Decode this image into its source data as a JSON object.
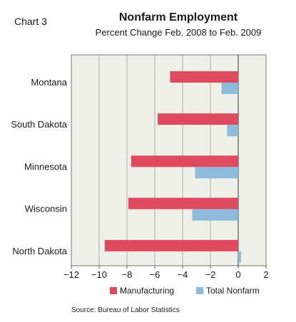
{
  "chart_label": "Chart 3",
  "source": "Source: Bureau of Labor Statistics",
  "colors": {
    "manufacturing": "#e04a5f",
    "total_nonfarm": "#8cbbdc",
    "plot_bg": "#eff0e8",
    "grid": "#9a9a9a"
  },
  "chart_data": {
    "type": "bar",
    "orientation": "horizontal",
    "title": "Nonfarm Employment",
    "subtitle": "Percent Change Feb. 2008 to Feb. 2009",
    "xlabel": "",
    "ylabel": "",
    "categories": [
      "Montana",
      "South Dakota",
      "Minnesota",
      "Wisconsin",
      "North Dakota"
    ],
    "series": [
      {
        "name": "Manufacturing",
        "values": [
          -4.9,
          -5.8,
          -7.7,
          -7.9,
          -9.6
        ]
      },
      {
        "name": "Total Nonfarm",
        "values": [
          -1.2,
          -0.8,
          -3.1,
          -3.3,
          0.2
        ]
      }
    ],
    "xlim": [
      -12,
      2
    ],
    "xticks": [
      -12,
      -10,
      -8,
      -6,
      -4,
      -2,
      0,
      2
    ],
    "xtick_labels": [
      "−12",
      "−10",
      "−8",
      "−6",
      "−4",
      "−2",
      "0",
      "2"
    ],
    "grid": "vertical",
    "legend_position": "bottom"
  }
}
